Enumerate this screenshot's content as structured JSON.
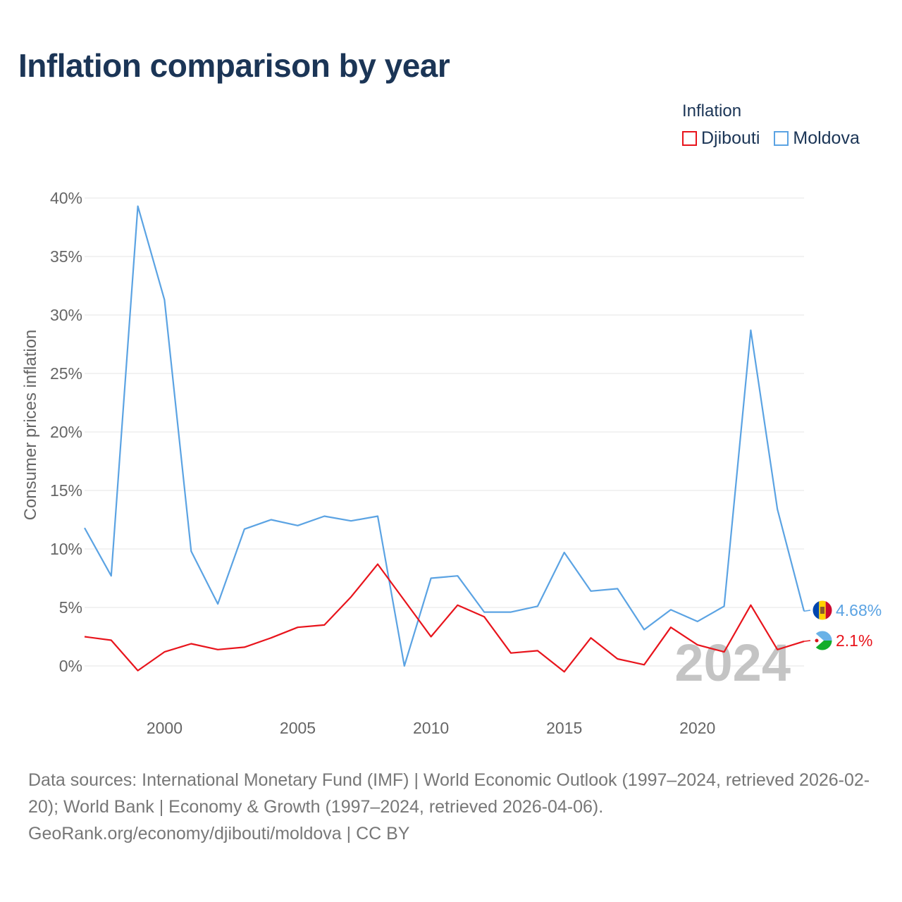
{
  "title": "Inflation comparison by year",
  "legend": {
    "title": "Inflation",
    "items": [
      {
        "label": "Djibouti",
        "color": "#e8141c"
      },
      {
        "label": "Moldova",
        "color": "#5ba3e3"
      }
    ]
  },
  "chart_data": {
    "type": "line",
    "title": "Inflation comparison by year",
    "xlabel": "",
    "ylabel": "Consumer prices inflation",
    "x": [
      1997,
      1998,
      1999,
      2000,
      2001,
      2002,
      2003,
      2004,
      2005,
      2006,
      2007,
      2008,
      2009,
      2010,
      2011,
      2012,
      2013,
      2014,
      2015,
      2016,
      2017,
      2018,
      2019,
      2020,
      2021,
      2022,
      2023,
      2024
    ],
    "xlim": [
      1997,
      2024
    ],
    "ylim": [
      0,
      40
    ],
    "y_ticks": [
      0,
      5,
      10,
      15,
      20,
      25,
      30,
      35,
      40
    ],
    "y_tick_labels": [
      "0%",
      "5%",
      "10%",
      "15%",
      "20%",
      "25%",
      "30%",
      "35%",
      "40%"
    ],
    "x_ticks": [
      2000,
      2005,
      2010,
      2015,
      2020
    ],
    "x_tick_labels": [
      "2000",
      "2005",
      "2010",
      "2015",
      "2020"
    ],
    "grid": true,
    "legend_position": "top-right",
    "year_watermark": "2024",
    "series": [
      {
        "name": "Moldova",
        "color": "#5ba3e3",
        "end_label": "4.68%",
        "values": [
          11.8,
          7.7,
          39.3,
          31.3,
          9.8,
          5.3,
          11.7,
          12.5,
          12.0,
          12.8,
          12.4,
          12.8,
          0.0,
          7.5,
          7.7,
          4.6,
          4.6,
          5.1,
          9.7,
          6.4,
          6.6,
          3.1,
          4.8,
          3.8,
          5.1,
          28.7,
          13.4,
          4.68
        ]
      },
      {
        "name": "Djibouti",
        "color": "#e8141c",
        "end_label": "2.1%",
        "values": [
          2.5,
          2.2,
          -0.4,
          1.2,
          1.9,
          1.4,
          1.6,
          2.4,
          3.3,
          3.5,
          5.9,
          8.7,
          5.6,
          2.5,
          5.2,
          4.2,
          1.1,
          1.3,
          -0.5,
          2.4,
          0.6,
          0.1,
          3.3,
          1.8,
          1.2,
          5.2,
          1.4,
          2.1
        ]
      }
    ]
  },
  "sources": {
    "text": "Data sources: International Monetary Fund (IMF) | World Economic Outlook (1997–2024, retrieved 2026-02-20); World Bank | Economy & Growth (1997–2024, retrieved 2026-04-06).",
    "url": "GeoRank.org/economy/djibouti/moldova | CC BY"
  }
}
